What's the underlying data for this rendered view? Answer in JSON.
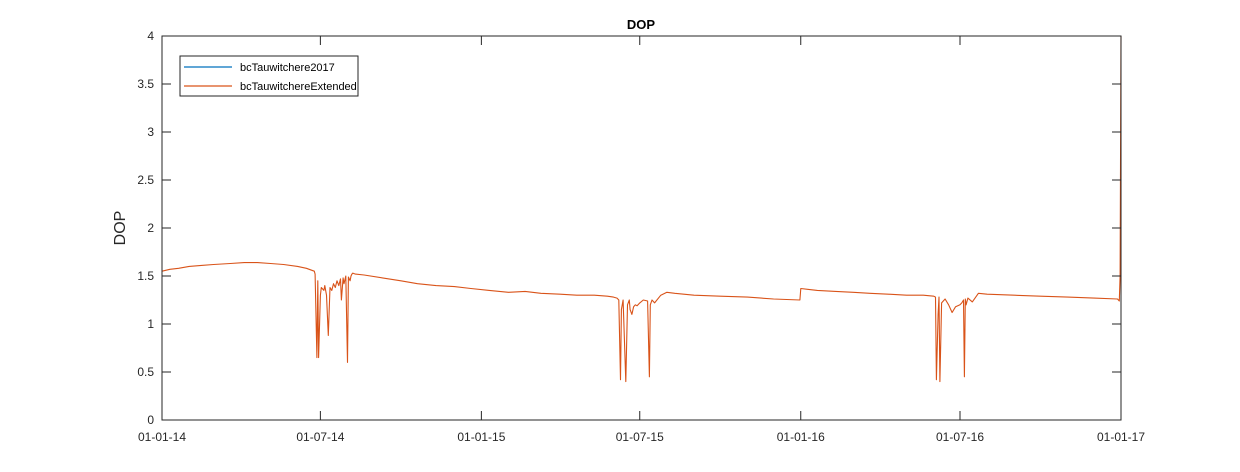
{
  "chart_data": {
    "type": "line",
    "title": "DOP",
    "xlabel": "",
    "ylabel": "DOP",
    "ylim": [
      0,
      4
    ],
    "yticks": [
      0,
      0.5,
      1,
      1.5,
      2,
      2.5,
      3,
      3.5,
      4
    ],
    "ytick_labels": [
      "0",
      "0.5",
      "1",
      "1.5",
      "2",
      "2.5",
      "3",
      "3.5",
      "4"
    ],
    "xlim": [
      "2014-01-01",
      "2017-01-01"
    ],
    "xticks": [
      "2014-01-01",
      "2014-07-01",
      "2015-01-01",
      "2015-07-01",
      "2016-01-01",
      "2016-07-01",
      "2017-01-01"
    ],
    "xtick_labels": [
      "01-01-14",
      "01-07-14",
      "01-01-15",
      "01-07-15",
      "01-01-16",
      "01-07-16",
      "01-01-17"
    ],
    "grid": false,
    "legend_position": "top-left",
    "series": [
      {
        "name": "bcTauwitchere2017",
        "color": "#0072BD",
        "x": [],
        "y": []
      },
      {
        "name": "bcTauwitchereExtended",
        "color": "#D95319",
        "x": [
          "2014-01-01",
          "2014-01-10",
          "2014-01-20",
          "2014-02-01",
          "2014-02-15",
          "2014-03-01",
          "2014-03-20",
          "2014-04-05",
          "2014-04-20",
          "2014-05-05",
          "2014-05-20",
          "2014-06-05",
          "2014-06-15",
          "2014-06-24",
          "2014-06-25",
          "2014-06-27",
          "2014-06-28",
          "2014-06-29",
          "2014-07-01",
          "2014-07-02",
          "2014-07-05",
          "2014-07-06",
          "2014-07-08",
          "2014-07-10",
          "2014-07-12",
          "2014-07-14",
          "2014-07-16",
          "2014-07-18",
          "2014-07-20",
          "2014-07-22",
          "2014-07-24",
          "2014-07-25",
          "2014-07-27",
          "2014-07-28",
          "2014-07-30",
          "2014-08-01",
          "2014-08-02",
          "2014-08-04",
          "2014-08-05",
          "2014-08-06",
          "2014-08-07",
          "2014-08-10",
          "2014-08-20",
          "2014-09-10",
          "2014-10-01",
          "2014-10-20",
          "2014-11-10",
          "2014-12-01",
          "2014-12-20",
          "2015-01-10",
          "2015-02-01",
          "2015-02-20",
          "2015-03-10",
          "2015-04-01",
          "2015-04-20",
          "2015-05-10",
          "2015-05-25",
          "2015-06-01",
          "2015-06-05",
          "2015-06-07",
          "2015-06-09",
          "2015-06-10",
          "2015-06-12",
          "2015-06-15",
          "2015-06-17",
          "2015-06-19",
          "2015-06-20",
          "2015-06-22",
          "2015-06-24",
          "2015-06-26",
          "2015-06-28",
          "2015-07-01",
          "2015-07-05",
          "2015-07-10",
          "2015-07-12",
          "2015-07-13",
          "2015-07-15",
          "2015-07-18",
          "2015-07-25",
          "2015-08-01",
          "2015-08-10",
          "2015-09-01",
          "2015-10-01",
          "2015-11-01",
          "2015-12-01",
          "2015-12-31",
          "2016-01-01",
          "2016-01-10",
          "2016-01-20",
          "2016-02-10",
          "2016-03-01",
          "2016-03-20",
          "2016-04-10",
          "2016-05-01",
          "2016-05-20",
          "2016-06-01",
          "2016-06-03",
          "2016-06-04",
          "2016-06-06",
          "2016-06-07",
          "2016-06-08",
          "2016-06-10",
          "2016-06-14",
          "2016-06-18",
          "2016-06-22",
          "2016-06-26",
          "2016-07-01",
          "2016-07-03",
          "2016-07-05",
          "2016-07-06",
          "2016-07-07",
          "2016-07-08",
          "2016-07-10",
          "2016-07-15",
          "2016-07-22",
          "2016-08-01",
          "2016-09-01",
          "2016-10-01",
          "2016-11-01",
          "2016-12-01",
          "2016-12-28",
          "2016-12-30",
          "2016-12-31",
          "2017-01-01"
        ],
        "y": [
          1.55,
          1.57,
          1.58,
          1.6,
          1.61,
          1.62,
          1.63,
          1.64,
          1.64,
          1.63,
          1.62,
          1.6,
          1.58,
          1.55,
          1.52,
          0.65,
          1.45,
          0.65,
          1.3,
          1.38,
          1.35,
          1.4,
          1.3,
          0.88,
          1.38,
          1.35,
          1.42,
          1.38,
          1.45,
          1.4,
          1.47,
          1.25,
          1.48,
          1.42,
          1.5,
          0.6,
          1.49,
          1.45,
          1.5,
          1.52,
          1.53,
          1.52,
          1.51,
          1.48,
          1.45,
          1.42,
          1.4,
          1.39,
          1.37,
          1.35,
          1.33,
          1.34,
          1.32,
          1.31,
          1.3,
          1.3,
          1.29,
          1.28,
          1.27,
          1.25,
          0.42,
          1.15,
          1.25,
          0.4,
          1.2,
          1.25,
          1.15,
          1.1,
          1.18,
          1.2,
          1.19,
          1.22,
          1.25,
          1.24,
          0.45,
          1.2,
          1.25,
          1.22,
          1.3,
          1.33,
          1.32,
          1.3,
          1.29,
          1.28,
          1.26,
          1.25,
          1.37,
          1.36,
          1.35,
          1.34,
          1.33,
          1.32,
          1.31,
          1.3,
          1.3,
          1.29,
          1.28,
          0.42,
          1.1,
          1.28,
          0.4,
          1.22,
          1.26,
          1.2,
          1.12,
          1.18,
          1.2,
          1.22,
          1.25,
          0.45,
          1.26,
          1.2,
          1.27,
          1.23,
          1.32,
          1.31,
          1.3,
          1.29,
          1.28,
          1.27,
          1.26,
          1.24,
          1.5,
          4.0
        ]
      }
    ]
  }
}
